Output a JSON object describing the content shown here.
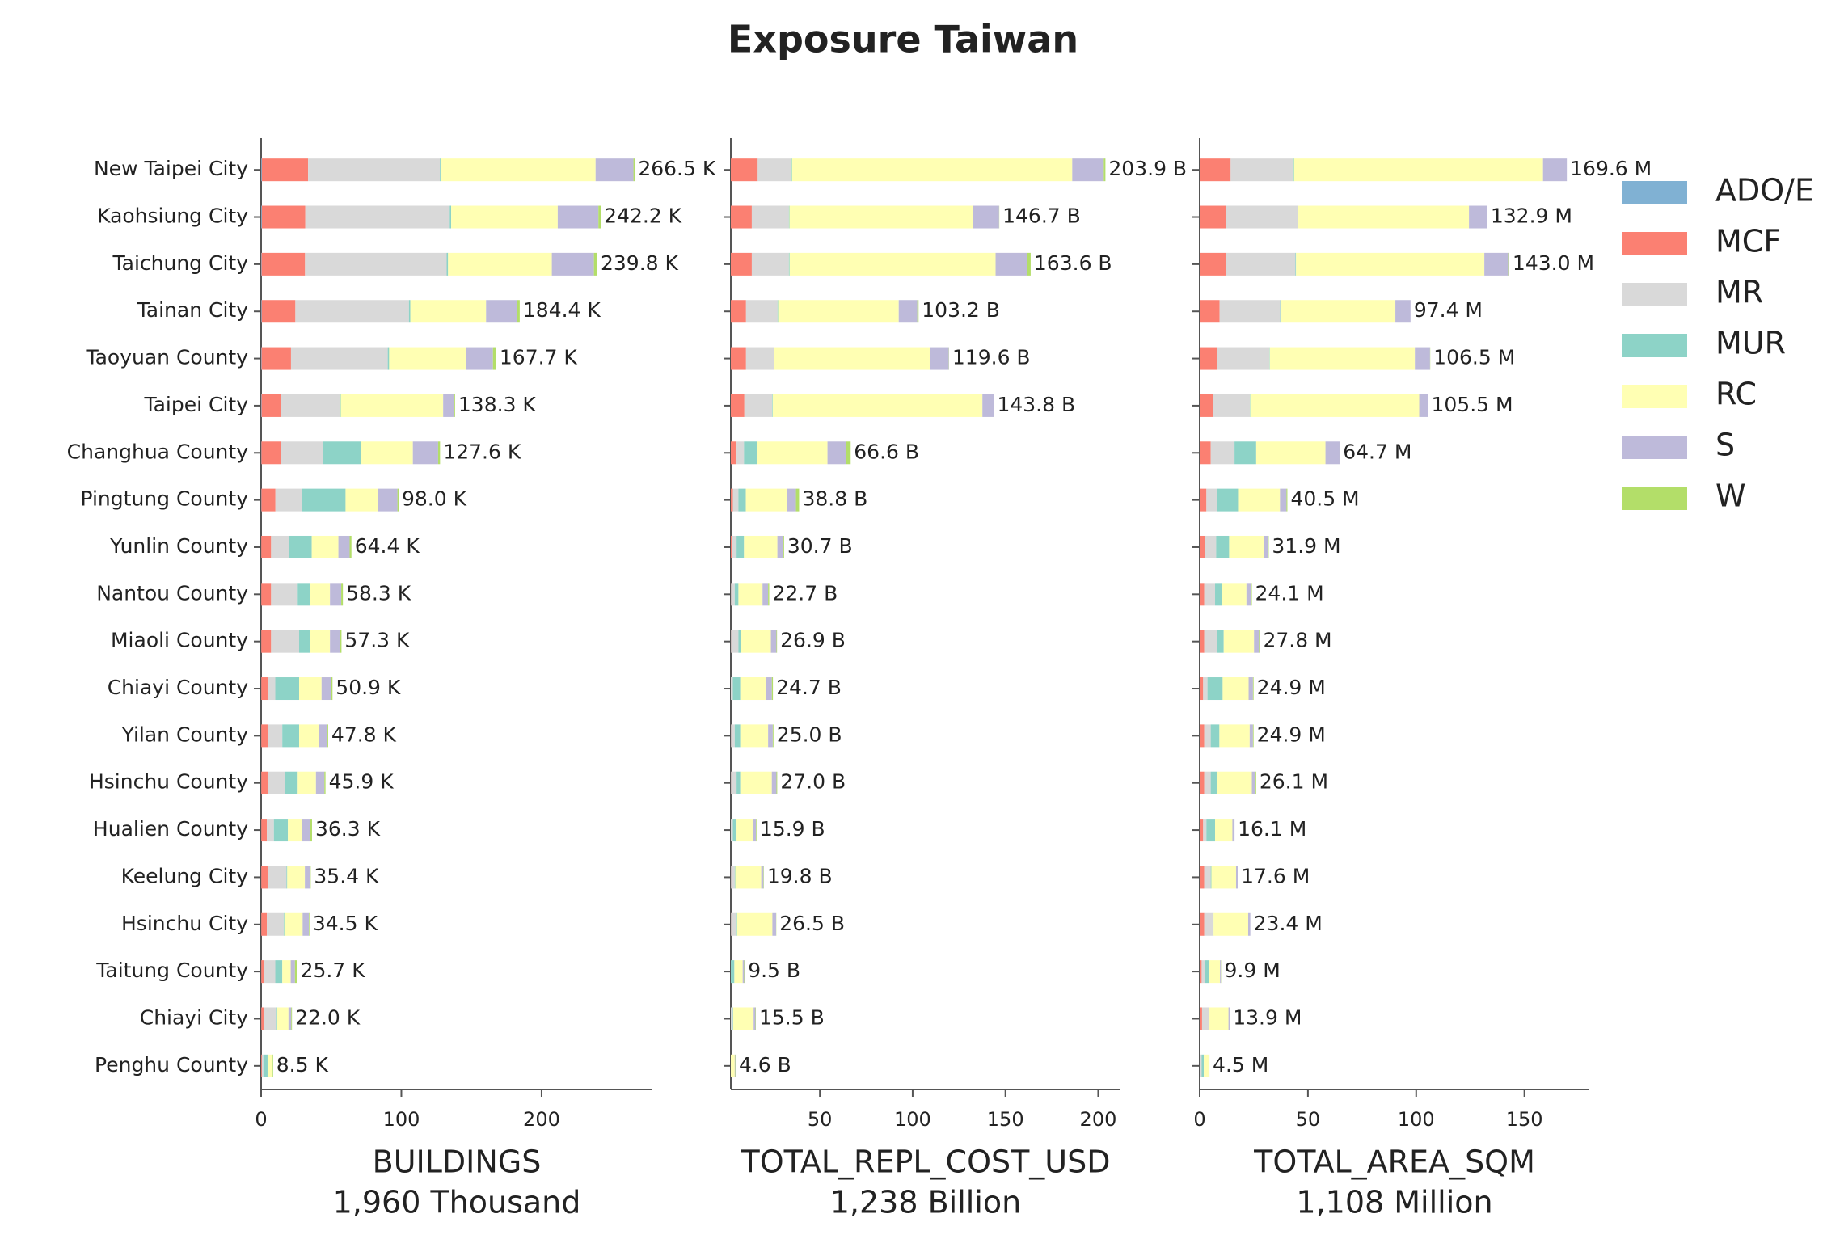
{
  "title": "Exposure Taiwan",
  "legend_position": "right",
  "chart_data": [
    {
      "type": "bar",
      "orientation": "horizontal",
      "stacked": true,
      "categories": [
        "New Taipei City",
        "Kaohsiung City",
        "Taichung City",
        "Tainan City",
        "Taoyuan County",
        "Taipei City",
        "Changhua County",
        "Pingtung County",
        "Yunlin County",
        "Nantou County",
        "Miaoli County",
        "Chiayi County",
        "Yilan County",
        "Hsinchu County",
        "Hualien County",
        "Keelung City",
        "Hsinchu City",
        "Taitung County",
        "Chiayi City",
        "Penghu County"
      ],
      "xlabel": [
        "BUILDINGS",
        "1,960 Thousand"
      ],
      "xlim": [
        0,
        279
      ],
      "xticks": [
        0,
        100,
        200
      ],
      "series": [
        {
          "name": "ADO/E",
          "color": "#80b1d3",
          "values": [
            0.5,
            0.5,
            0.3,
            0.4,
            0.3,
            0.3,
            0.2,
            0.2,
            0.1,
            0.1,
            0.1,
            0.1,
            0.1,
            0.1,
            0.1,
            0.1,
            0.1,
            0.1,
            0.1,
            0.1
          ]
        },
        {
          "name": "MCF",
          "color": "#fb8072",
          "values": [
            33,
            31,
            31,
            24,
            21,
            14,
            14,
            10,
            7,
            7,
            7,
            5,
            5,
            5,
            4,
            5,
            4,
            2,
            2,
            0.5
          ]
        },
        {
          "name": "MR",
          "color": "#d9d9d9",
          "values": [
            94,
            103,
            101,
            81,
            69,
            42,
            30,
            19,
            13,
            19,
            20,
            5,
            10,
            12,
            5,
            13,
            12,
            8,
            9,
            1
          ]
        },
        {
          "name": "MUR",
          "color": "#8dd3c7",
          "values": [
            1,
            1,
            1,
            1,
            1,
            0.5,
            27,
            31,
            16,
            9,
            8,
            17,
            12,
            9,
            10,
            0.5,
            0.5,
            5,
            0.4,
            3
          ]
        },
        {
          "name": "RC",
          "color": "#ffffb3",
          "values": [
            110,
            76,
            74,
            54,
            55,
            73,
            37,
            23,
            19,
            14,
            14,
            16,
            14,
            13,
            10,
            12.6,
            13,
            6,
            8,
            3
          ]
        },
        {
          "name": "S",
          "color": "#bebada",
          "values": [
            27,
            29,
            30,
            22,
            19,
            8,
            18,
            14,
            8,
            8,
            7,
            7,
            6,
            6,
            6,
            4,
            4.5,
            3,
            2,
            0.4
          ]
        },
        {
          "name": "W",
          "color": "#b3de69",
          "values": [
            1,
            1.7,
            2.5,
            2,
            2.4,
            0.5,
            1.4,
            0.8,
            1.3,
            1.2,
            1.2,
            0.8,
            0.7,
            0.8,
            1.2,
            0.2,
            0.4,
            1.6,
            0.5,
            0.5
          ]
        }
      ],
      "totals": {
        "values": [
          266.5,
          242.2,
          239.8,
          184.4,
          167.7,
          138.3,
          127.6,
          98.0,
          64.4,
          58.3,
          57.3,
          50.9,
          47.8,
          45.9,
          36.3,
          35.4,
          34.5,
          25.7,
          22.0,
          8.5
        ],
        "value_labels": [
          "266.5 K",
          "242.2 K",
          "239.8 K",
          "184.4 K",
          "167.7 K",
          "138.3 K",
          "127.6 K",
          "98.0 K",
          "64.4 K",
          "58.3 K",
          "57.3 K",
          "50.9 K",
          "47.8 K",
          "45.9 K",
          "36.3 K",
          "35.4 K",
          "34.5 K",
          "25.7 K",
          "22.0 K",
          "8.5 K"
        ]
      }
    },
    {
      "type": "bar",
      "orientation": "horizontal",
      "stacked": true,
      "xlabel": [
        "TOTAL_REPL_COST_USD",
        "1,238 Billion"
      ],
      "xlim": [
        2,
        212
      ],
      "xticks": [
        50,
        100,
        150,
        200
      ],
      "series": [
        {
          "values": [
            0.5,
            0.3,
            0.3,
            0.2,
            0.2,
            0.3,
            0.1,
            0.1,
            0.1,
            0.1,
            0.1,
            0.1,
            0.1,
            0.1,
            0.1,
            0.1,
            0.1,
            0.1,
            0.1,
            0.1
          ]
        },
        {
          "values": [
            16,
            13,
            13,
            10,
            10,
            9,
            5,
            3,
            2.5,
            2,
            2,
            1.5,
            2,
            2,
            1.5,
            2,
            2,
            0.8,
            1,
            0.3
          ]
        },
        {
          "values": [
            18,
            20,
            20,
            17,
            15,
            15,
            4,
            3,
            2.5,
            2,
            4,
            1.5,
            2,
            3,
            1.5,
            2,
            3,
            1,
            2,
            0.3
          ]
        },
        {
          "values": [
            0.5,
            0.3,
            0.4,
            0.3,
            0.3,
            0.3,
            7,
            4,
            4,
            2,
            1.5,
            4,
            3,
            2,
            2,
            0.3,
            0.3,
            2,
            0.2,
            0.8
          ]
        },
        {
          "values": [
            151,
            99,
            111,
            65,
            84,
            113,
            38,
            22,
            18,
            13,
            16,
            14,
            15,
            17,
            9,
            14,
            19,
            4.5,
            11,
            2.6
          ]
        },
        {
          "values": [
            17,
            14,
            17,
            10,
            10,
            6,
            10,
            5,
            3,
            3,
            3,
            3,
            2.5,
            2.5,
            1.5,
            1.2,
            2,
            0.8,
            1,
            0.3
          ]
        },
        {
          "values": [
            0.9,
            0.1,
            1.9,
            0.7,
            0.1,
            0.2,
            2.5,
            1.7,
            0.6,
            0.6,
            0.3,
            0.6,
            0.4,
            0.4,
            0.3,
            0.2,
            0.1,
            0.3,
            0.2,
            0.2
          ]
        }
      ],
      "totals": {
        "values": [
          203.9,
          146.7,
          163.6,
          103.2,
          119.6,
          143.8,
          66.6,
          38.8,
          30.7,
          22.7,
          26.9,
          24.7,
          25.0,
          27.0,
          15.9,
          19.8,
          26.5,
          9.5,
          15.5,
          4.6
        ],
        "value_labels": [
          "203.9 B",
          "146.7 B",
          "163.6 B",
          "103.2 B",
          "119.6 B",
          "143.8 B",
          "66.6 B",
          "38.8 B",
          "30.7 B",
          "22.7 B",
          "26.9 B",
          "24.7 B",
          "25.0 B",
          "27.0 B",
          "15.9 B",
          "19.8 B",
          "26.5 B",
          "9.5 B",
          "15.5 B",
          "4.6 B"
        ]
      }
    },
    {
      "type": "bar",
      "orientation": "horizontal",
      "stacked": true,
      "xlabel": [
        "TOTAL_AREA_SQM",
        "1,108 Million"
      ],
      "xlim": [
        0,
        180
      ],
      "xticks": [
        0,
        50,
        100,
        150
      ],
      "series": [
        {
          "values": [
            0.3,
            0.2,
            0.2,
            0.2,
            0.2,
            0.2,
            0.1,
            0.1,
            0.1,
            0.1,
            0.1,
            0.1,
            0.1,
            0.1,
            0.1,
            0.1,
            0.1,
            0.1,
            0.1,
            0.1
          ]
        },
        {
          "values": [
            14,
            12,
            12,
            9,
            8,
            6,
            5,
            3,
            2.5,
            2,
            2,
            1.5,
            2,
            2,
            1.5,
            2,
            2,
            0.8,
            1,
            0.3
          ]
        },
        {
          "values": [
            29,
            33,
            32,
            28,
            24,
            17,
            11,
            5,
            5,
            5,
            6,
            2,
            3,
            3,
            1.5,
            3,
            4,
            1.5,
            3,
            0.5
          ]
        },
        {
          "values": [
            0.3,
            0.2,
            0.3,
            0.2,
            0.2,
            0.2,
            10,
            10,
            6,
            3,
            3,
            7,
            4,
            3,
            4,
            0.3,
            0.3,
            2,
            0.2,
            1
          ]
        },
        {
          "values": [
            115,
            79,
            87,
            53,
            67,
            78,
            32,
            19,
            16,
            11.5,
            14,
            12,
            14,
            16,
            8,
            11.4,
            16,
            5,
            9,
            2.2
          ]
        },
        {
          "values": [
            11,
            8.5,
            11,
            7,
            7,
            4,
            6.5,
            3,
            2,
            2.2,
            2.3,
            2,
            1.5,
            1.7,
            1,
            0.8,
            1,
            0.4,
            0.6,
            0.2
          ]
        },
        {
          "values": [
            0,
            0,
            0.5,
            0,
            0.1,
            0.1,
            0.1,
            0.4,
            0.3,
            0.3,
            0.4,
            0.3,
            0.3,
            0.3,
            0,
            0,
            0,
            0.1,
            0,
            0.2
          ]
        }
      ],
      "totals": {
        "values": [
          169.6,
          132.9,
          143.0,
          97.4,
          106.5,
          105.5,
          64.7,
          40.5,
          31.9,
          24.1,
          27.8,
          24.9,
          24.9,
          26.1,
          16.1,
          17.6,
          23.4,
          9.9,
          13.9,
          4.5
        ],
        "value_labels": [
          "169.6 M",
          "132.9 M",
          "143.0 M",
          "97.4 M",
          "106.5 M",
          "105.5 M",
          "64.7 M",
          "40.5 M",
          "31.9 M",
          "24.1 M",
          "27.8 M",
          "24.9 M",
          "24.9 M",
          "26.1 M",
          "16.1 M",
          "17.6 M",
          "23.4 M",
          "9.9 M",
          "13.9 M",
          "4.5 M"
        ]
      }
    }
  ]
}
